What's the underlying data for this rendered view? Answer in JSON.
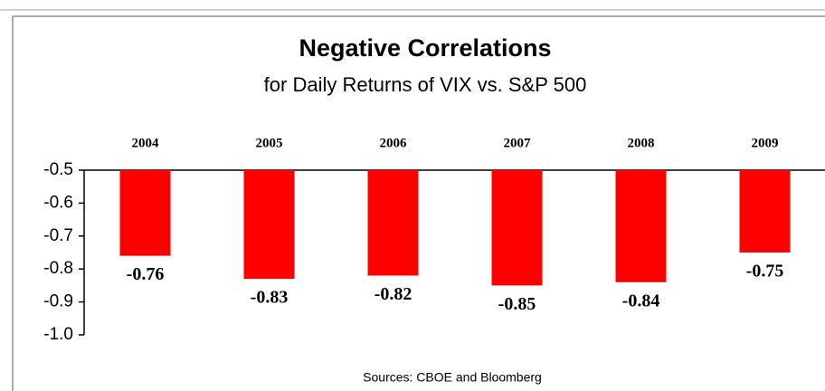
{
  "chart_data": {
    "type": "bar",
    "title": "Negative Correlations",
    "subtitle": "for Daily Returns of VIX vs. S&P 500",
    "categories": [
      "2004",
      "2005",
      "2006",
      "2007",
      "2008",
      "2009"
    ],
    "values": [
      -0.76,
      -0.83,
      -0.82,
      -0.85,
      -0.84,
      -0.75
    ],
    "color": "#ff0000",
    "ylim": [
      -1,
      -0.5
    ],
    "yticks": [
      -0.5,
      -0.6,
      -0.7,
      -0.8,
      -0.9,
      {
        "value": -1,
        "label": "-1.0"
      }
    ],
    "source": "Sources: CBOE and Bloomberg"
  }
}
